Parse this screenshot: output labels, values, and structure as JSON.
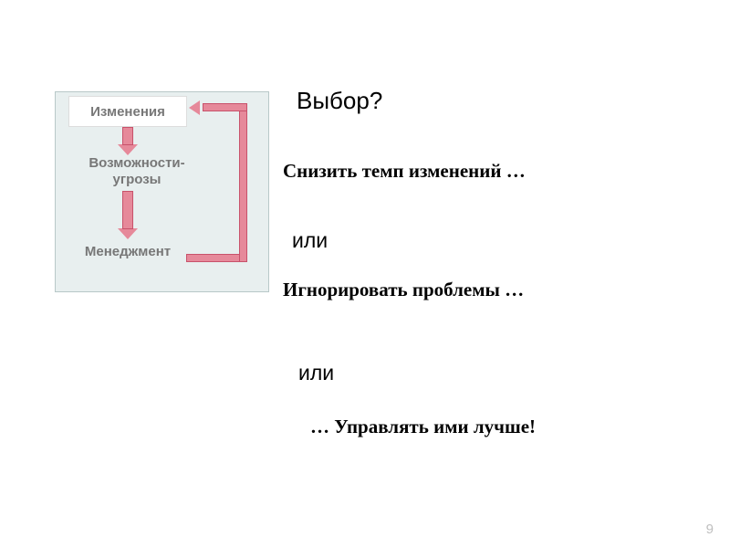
{
  "colors": {
    "box_bg": "#e8efef",
    "box_border": "#b8c8c8",
    "node_text": "#777777",
    "node1_border": "#dddddd",
    "arrow_fill": "#e6899a",
    "arrow_stroke": "#c8526b",
    "page_num": "#bfbfbf"
  },
  "diagram": {
    "nodes": {
      "n1": "Изменения",
      "n2": "Возможности-угрозы",
      "n3": "Менеджмент"
    }
  },
  "text": {
    "title": "Выбор?",
    "option1": "Снизить темп изменений …",
    "or1": "или",
    "option2": "Игнорировать проблемы …",
    "or2": "или",
    "option3": "… Управлять ими лучше!"
  },
  "page_number": "9"
}
